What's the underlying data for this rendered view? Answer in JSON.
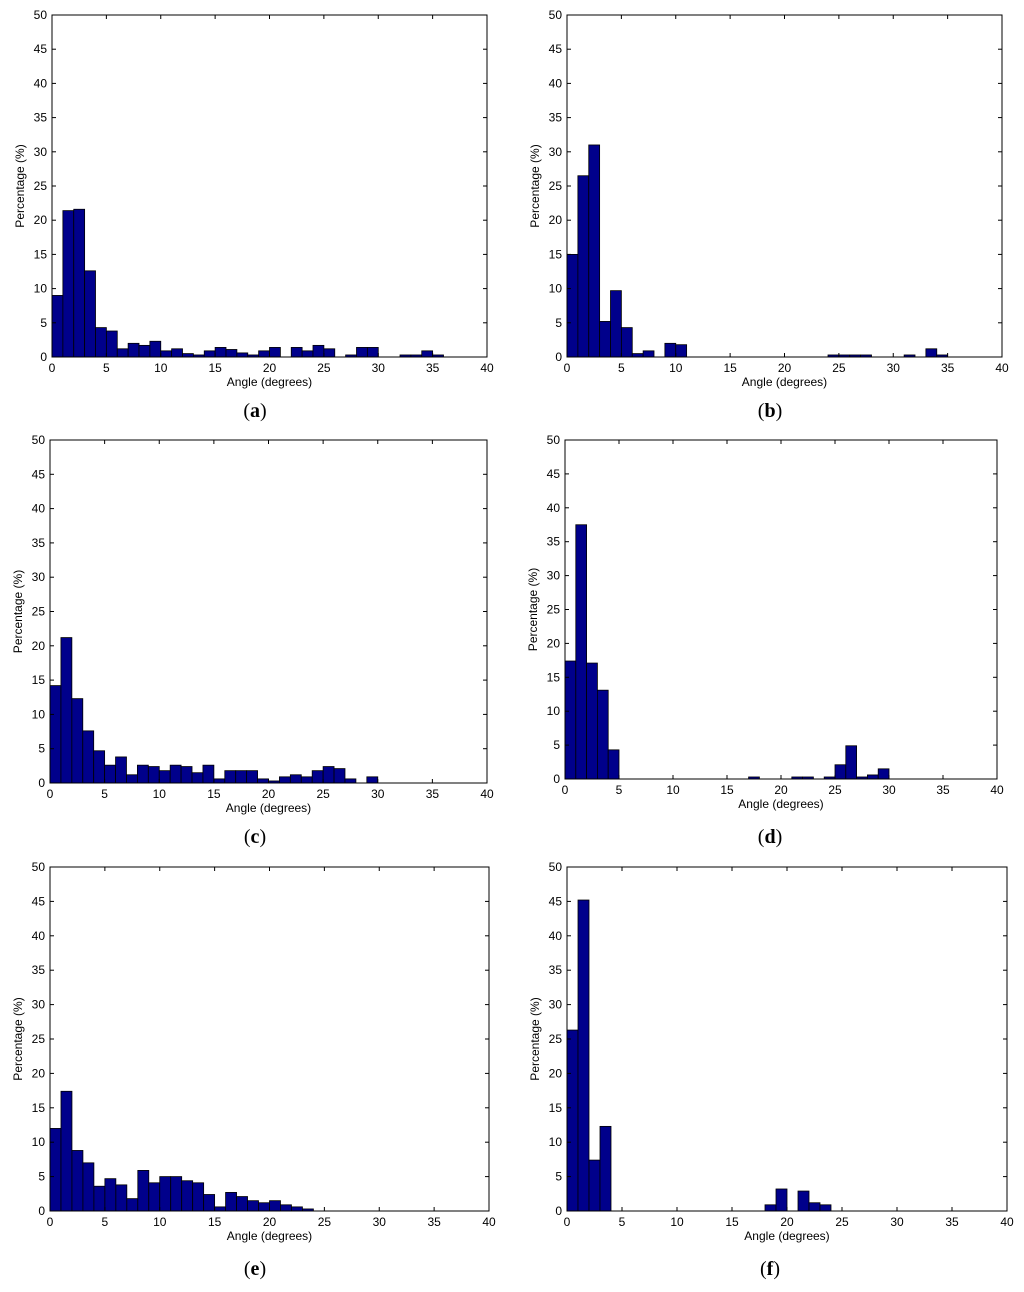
{
  "colors": {
    "bar": "#00008b",
    "axis": "#000000",
    "background": "#ffffff"
  },
  "chart_data": [
    {
      "type": "bar",
      "panel": "a",
      "xlabel": "Angle (degrees)",
      "ylabel": "Percentage (%)",
      "xlim": [
        0,
        40
      ],
      "ylim": [
        0,
        50
      ],
      "xticks": [
        0,
        5,
        10,
        15,
        20,
        25,
        30,
        35,
        40
      ],
      "yticks": [
        0,
        5,
        10,
        15,
        20,
        25,
        30,
        35,
        40,
        45,
        50
      ],
      "grid": false,
      "bin_width": 1,
      "x": [
        0.5,
        1.5,
        2.5,
        3.5,
        4.5,
        5.5,
        6.5,
        7.5,
        8.5,
        9.5,
        10.5,
        11.5,
        12.5,
        13.5,
        14.5,
        15.5,
        16.5,
        17.5,
        18.5,
        19.5,
        20.5,
        22.5,
        23.5,
        24.5,
        25.5,
        27.5,
        28.5,
        29.5,
        32.5,
        33.5,
        34.5,
        35.5
      ],
      "values": [
        9,
        21.4,
        21.6,
        12.6,
        4.3,
        3.8,
        1.2,
        2,
        1.7,
        2.3,
        0.9,
        1.2,
        0.5,
        0.3,
        0.9,
        1.4,
        1.1,
        0.6,
        0.3,
        0.9,
        1.4,
        1.4,
        0.9,
        1.7,
        1.2,
        0.3,
        1.4,
        1.4,
        0.3,
        0.3,
        0.9,
        0.3
      ]
    },
    {
      "type": "bar",
      "panel": "b",
      "xlabel": "Angle (degrees)",
      "ylabel": "Percentage (%)",
      "xlim": [
        0,
        40
      ],
      "ylim": [
        0,
        50
      ],
      "xticks": [
        0,
        5,
        10,
        15,
        20,
        25,
        30,
        35,
        40
      ],
      "yticks": [
        0,
        5,
        10,
        15,
        20,
        25,
        30,
        35,
        40,
        45,
        50
      ],
      "grid": false,
      "bin_width": 1,
      "x": [
        0.5,
        1.5,
        2.5,
        3.5,
        4.5,
        5.5,
        6.5,
        7.5,
        9.5,
        10.5,
        24.5,
        25.5,
        26.5,
        27.5,
        31.5,
        33.5,
        34.5
      ],
      "values": [
        15,
        26.5,
        31,
        5.2,
        9.7,
        4.3,
        0.5,
        0.9,
        2,
        1.8,
        0.3,
        0.3,
        0.3,
        0.3,
        0.3,
        1.2,
        0.3
      ]
    },
    {
      "type": "bar",
      "panel": "c",
      "xlabel": "Angle (degrees)",
      "ylabel": "Percentage (%)",
      "xlim": [
        0,
        40
      ],
      "ylim": [
        0,
        50
      ],
      "xticks": [
        0,
        5,
        10,
        15,
        20,
        25,
        30,
        35,
        40
      ],
      "yticks": [
        0,
        5,
        10,
        15,
        20,
        25,
        30,
        35,
        40,
        45,
        50
      ],
      "grid": false,
      "bin_width": 1,
      "x": [
        0.5,
        1.5,
        2.5,
        3.5,
        4.5,
        5.5,
        6.5,
        7.5,
        8.5,
        9.5,
        10.5,
        11.5,
        12.5,
        13.5,
        14.5,
        15.5,
        16.5,
        17.5,
        18.5,
        19.5,
        20.5,
        21.5,
        22.5,
        23.5,
        24.5,
        25.5,
        26.5,
        27.5,
        29.5
      ],
      "values": [
        14.2,
        21.2,
        12.3,
        7.6,
        4.7,
        2.6,
        3.8,
        1.2,
        2.6,
        2.4,
        1.8,
        2.6,
        2.4,
        1.5,
        2.6,
        0.6,
        1.8,
        1.8,
        1.8,
        0.6,
        0.3,
        0.9,
        1.2,
        0.9,
        1.8,
        2.4,
        2.1,
        0.6,
        0.9
      ]
    },
    {
      "type": "bar",
      "panel": "d",
      "xlabel": "Angle (degrees)",
      "ylabel": "Percentage (%)",
      "xlim": [
        0,
        40
      ],
      "ylim": [
        0,
        50
      ],
      "xticks": [
        0,
        5,
        10,
        15,
        20,
        25,
        30,
        35,
        40
      ],
      "yticks": [
        0,
        5,
        10,
        15,
        20,
        25,
        30,
        35,
        40,
        45,
        50
      ],
      "grid": false,
      "bin_width": 1,
      "x": [
        0.5,
        1.5,
        2.5,
        3.5,
        4.5,
        17.5,
        21.5,
        22.5,
        24.5,
        25.5,
        26.5,
        27.5,
        28.5,
        29.5
      ],
      "values": [
        17.4,
        37.5,
        17.1,
        13.1,
        4.3,
        0.3,
        0.3,
        0.3,
        0.3,
        2.1,
        4.9,
        0.3,
        0.6,
        1.5
      ]
    },
    {
      "type": "bar",
      "panel": "e",
      "xlabel": "Angle (degrees)",
      "ylabel": "Percentage (%)",
      "xlim": [
        0,
        40
      ],
      "ylim": [
        0,
        50
      ],
      "xticks": [
        0,
        5,
        10,
        15,
        20,
        25,
        30,
        35,
        40
      ],
      "yticks": [
        0,
        5,
        10,
        15,
        20,
        25,
        30,
        35,
        40,
        45,
        50
      ],
      "grid": false,
      "bin_width": 1,
      "x": [
        0.5,
        1.5,
        2.5,
        3.5,
        4.5,
        5.5,
        6.5,
        7.5,
        8.5,
        9.5,
        10.5,
        11.5,
        12.5,
        13.5,
        14.5,
        15.5,
        16.5,
        17.5,
        18.5,
        19.5,
        20.5,
        21.5,
        22.5,
        23.5
      ],
      "values": [
        12,
        17.4,
        8.8,
        7,
        3.6,
        4.7,
        3.8,
        1.8,
        5.9,
        4.1,
        5,
        5,
        4.4,
        4.1,
        2.4,
        0.6,
        2.7,
        2.1,
        1.5,
        1.2,
        1.5,
        0.9,
        0.6,
        0.3
      ]
    },
    {
      "type": "bar",
      "panel": "f",
      "xlabel": "Angle (degrees)",
      "ylabel": "Percentage (%)",
      "xlim": [
        0,
        40
      ],
      "ylim": [
        0,
        50
      ],
      "xticks": [
        0,
        5,
        10,
        15,
        20,
        25,
        30,
        35,
        40
      ],
      "yticks": [
        0,
        5,
        10,
        15,
        20,
        25,
        30,
        35,
        40,
        45,
        50
      ],
      "grid": false,
      "bin_width": 1,
      "x": [
        0.5,
        1.5,
        2.5,
        3.5,
        18.5,
        19.5,
        21.5,
        22.5,
        23.5
      ],
      "values": [
        26.3,
        45.2,
        7.4,
        12.3,
        0.9,
        3.2,
        2.9,
        1.2,
        0.9
      ]
    }
  ],
  "captions": [
    {
      "open": "(",
      "letter": "a",
      "close": ")"
    },
    {
      "open": "(",
      "letter": "b",
      "close": ")"
    },
    {
      "open": "(",
      "letter": "c",
      "close": ")"
    },
    {
      "open": "(",
      "letter": "d",
      "close": ")"
    },
    {
      "open": "(",
      "letter": "e",
      "close": ")"
    },
    {
      "open": "(",
      "letter": "f",
      "close": ")"
    }
  ]
}
